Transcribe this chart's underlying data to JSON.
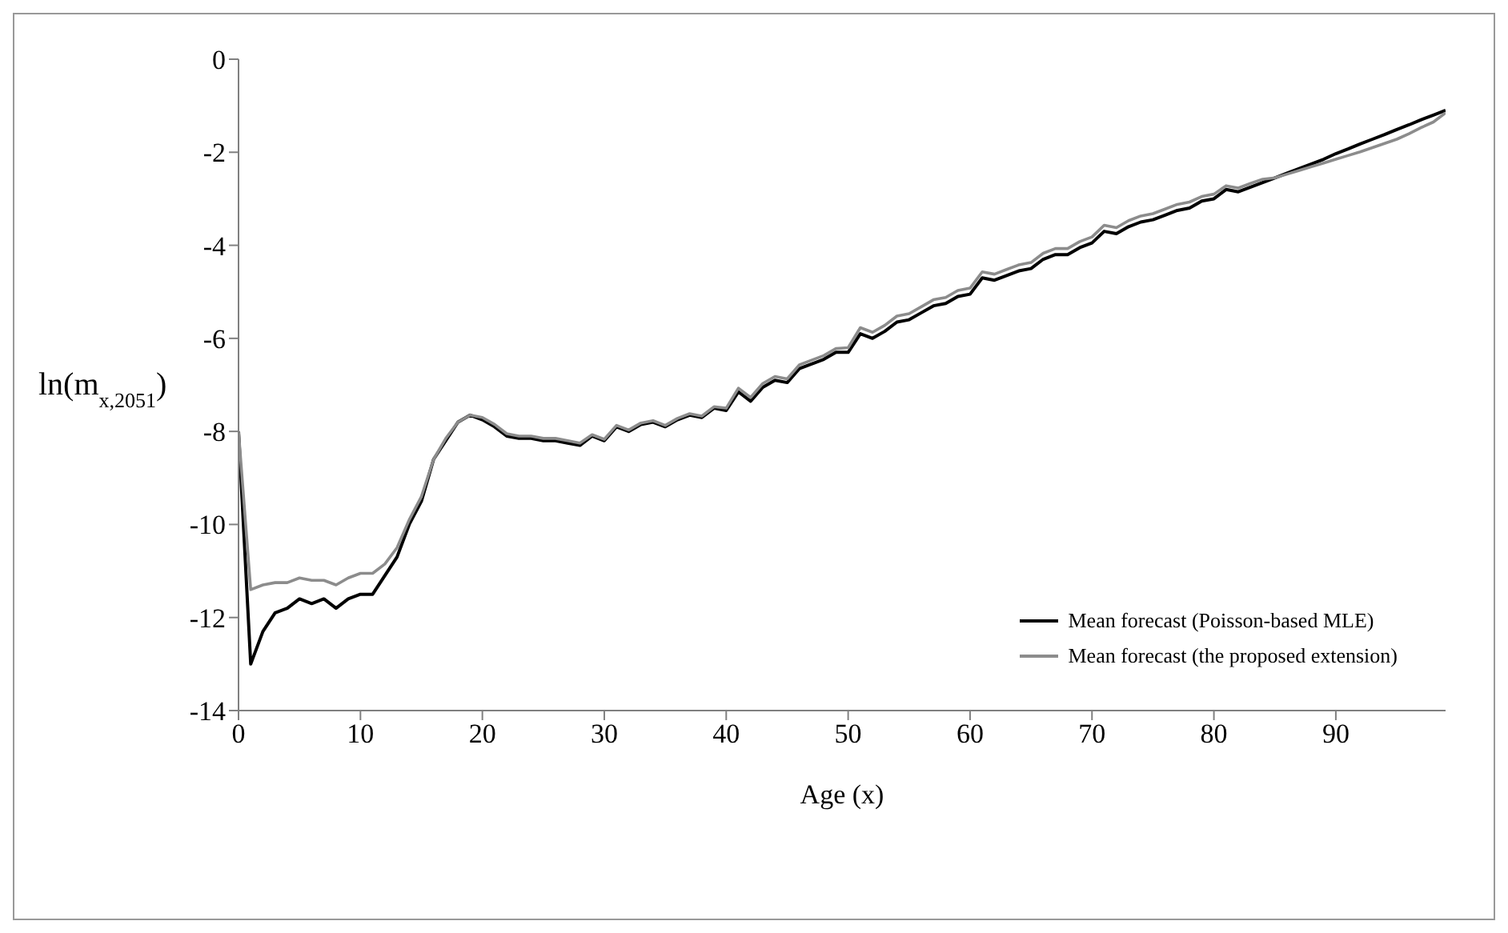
{
  "chart_data": {
    "type": "line",
    "xlabel": "Age (x)",
    "ylabel": "ln(m$_{x,2051}$)",
    "x": [
      0,
      1,
      2,
      3,
      4,
      5,
      6,
      7,
      8,
      9,
      10,
      11,
      12,
      13,
      14,
      15,
      16,
      17,
      18,
      19,
      20,
      21,
      22,
      23,
      24,
      25,
      26,
      27,
      28,
      29,
      30,
      31,
      32,
      33,
      34,
      35,
      36,
      37,
      38,
      39,
      40,
      41,
      42,
      43,
      44,
      45,
      46,
      47,
      48,
      49,
      50,
      51,
      52,
      53,
      54,
      55,
      56,
      57,
      58,
      59,
      60,
      61,
      62,
      63,
      64,
      65,
      66,
      67,
      68,
      69,
      70,
      71,
      72,
      73,
      74,
      75,
      76,
      77,
      78,
      79,
      80,
      81,
      82,
      83,
      84,
      85,
      86,
      87,
      88,
      89,
      90,
      91,
      92,
      93,
      94,
      95,
      96,
      97,
      98,
      99
    ],
    "series": [
      {
        "name": "Mean forecast (Poisson-based MLE)",
        "color": "#000000",
        "values": [
          -8.0,
          -13.0,
          -12.3,
          -11.9,
          -11.8,
          -11.6,
          -11.7,
          -11.6,
          -11.8,
          -11.6,
          -11.5,
          -11.5,
          -11.1,
          -10.7,
          -10.0,
          -9.5,
          -8.6,
          -8.2,
          -7.8,
          -7.65,
          -7.75,
          -7.9,
          -8.1,
          -8.15,
          -8.15,
          -8.2,
          -8.2,
          -8.25,
          -8.3,
          -8.1,
          -8.2,
          -7.9,
          -8.0,
          -7.85,
          -7.8,
          -7.9,
          -7.75,
          -7.65,
          -7.7,
          -7.5,
          -7.55,
          -7.15,
          -7.35,
          -7.05,
          -6.9,
          -6.95,
          -6.65,
          -6.55,
          -6.45,
          -6.3,
          -6.3,
          -5.9,
          -6.0,
          -5.85,
          -5.65,
          -5.6,
          -5.45,
          -5.3,
          -5.25,
          -5.1,
          -5.05,
          -4.7,
          -4.75,
          -4.65,
          -4.55,
          -4.5,
          -4.3,
          -4.2,
          -4.2,
          -4.05,
          -3.95,
          -3.7,
          -3.75,
          -3.6,
          -3.5,
          -3.45,
          -3.35,
          -3.25,
          -3.2,
          -3.05,
          -3.0,
          -2.8,
          -2.85,
          -2.75,
          -2.65,
          -2.55,
          -2.45,
          -2.35,
          -2.25,
          -2.15,
          -2.03,
          -1.93,
          -1.82,
          -1.72,
          -1.62,
          -1.51,
          -1.41,
          -1.3,
          -1.2,
          -1.1
        ]
      },
      {
        "name": "Mean forecast (the proposed extension)",
        "color": "#8c8c8c",
        "values": [
          -8.0,
          -11.4,
          -11.3,
          -11.25,
          -11.25,
          -11.15,
          -11.2,
          -11.2,
          -11.3,
          -11.15,
          -11.05,
          -11.05,
          -10.85,
          -10.5,
          -9.9,
          -9.4,
          -8.6,
          -8.15,
          -7.8,
          -7.65,
          -7.7,
          -7.85,
          -8.05,
          -8.1,
          -8.1,
          -8.15,
          -8.15,
          -8.2,
          -8.25,
          -8.07,
          -8.17,
          -7.87,
          -7.97,
          -7.82,
          -7.77,
          -7.87,
          -7.72,
          -7.62,
          -7.67,
          -7.47,
          -7.5,
          -7.07,
          -7.27,
          -6.97,
          -6.82,
          -6.87,
          -6.57,
          -6.47,
          -6.37,
          -6.22,
          -6.2,
          -5.77,
          -5.87,
          -5.72,
          -5.52,
          -5.47,
          -5.32,
          -5.17,
          -5.12,
          -4.97,
          -4.92,
          -4.57,
          -4.62,
          -4.52,
          -4.42,
          -4.37,
          -4.17,
          -4.07,
          -4.07,
          -3.92,
          -3.82,
          -3.57,
          -3.62,
          -3.47,
          -3.37,
          -3.32,
          -3.22,
          -3.12,
          -3.07,
          -2.95,
          -2.9,
          -2.72,
          -2.77,
          -2.67,
          -2.58,
          -2.55,
          -2.47,
          -2.39,
          -2.31,
          -2.23,
          -2.15,
          -2.07,
          -1.99,
          -1.9,
          -1.81,
          -1.72,
          -1.6,
          -1.47,
          -1.35,
          -1.15
        ]
      }
    ],
    "xlim": [
      0,
      99
    ],
    "xticks": [
      0,
      10,
      20,
      30,
      40,
      50,
      60,
      70,
      80,
      90
    ],
    "ylim": [
      -14,
      0
    ],
    "yticks": [
      0,
      -2,
      -4,
      -6,
      -8,
      -10,
      -12,
      -14
    ],
    "grid": false,
    "legend": "bottom right",
    "marker": "none",
    "line_style": "solid"
  }
}
